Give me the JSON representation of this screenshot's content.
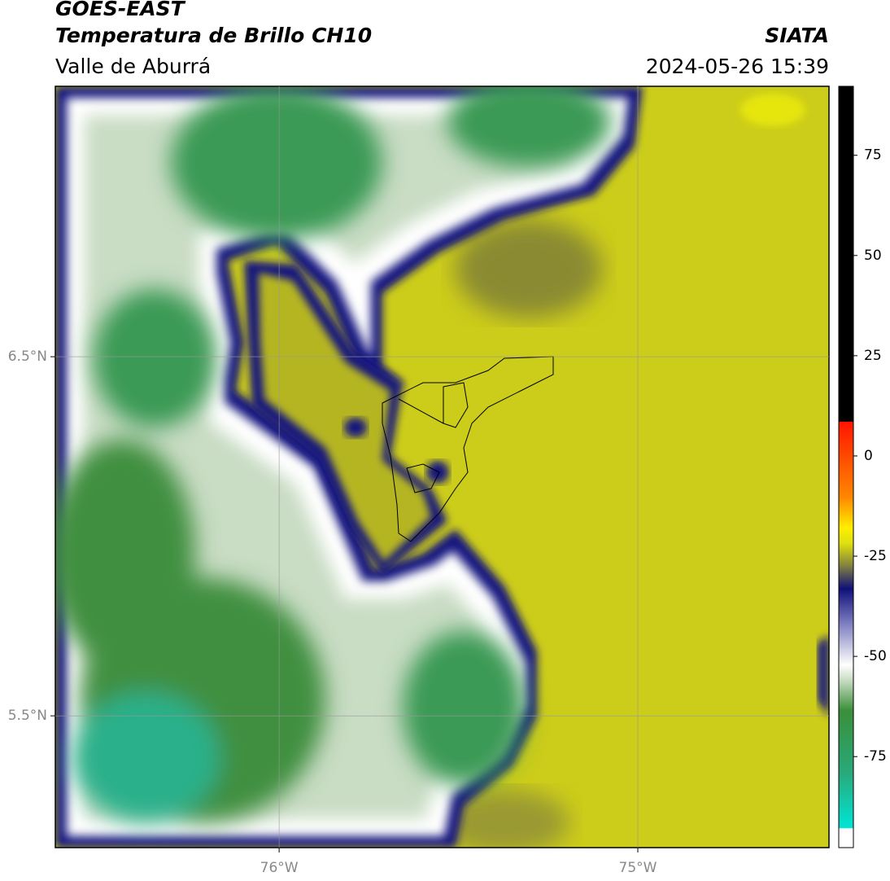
{
  "header": {
    "title": "GOES-EAST",
    "subtitle": "Temperatura de Brillo CH10",
    "region": "Valle de Aburrá",
    "source": "SIATA",
    "timestamp": "2024-05-26 15:39"
  },
  "map": {
    "lat_ticks": [
      {
        "value": 6.5,
        "label": "6.5°N"
      },
      {
        "value": 5.5,
        "label": "5.5°N"
      }
    ],
    "lon_ticks": [
      {
        "value": -76,
        "label": "76°W"
      },
      {
        "value": -75,
        "label": "75°W"
      }
    ]
  },
  "colorbar": {
    "ticks": [
      75,
      50,
      25,
      0,
      -25,
      -50,
      -75
    ]
  }
}
